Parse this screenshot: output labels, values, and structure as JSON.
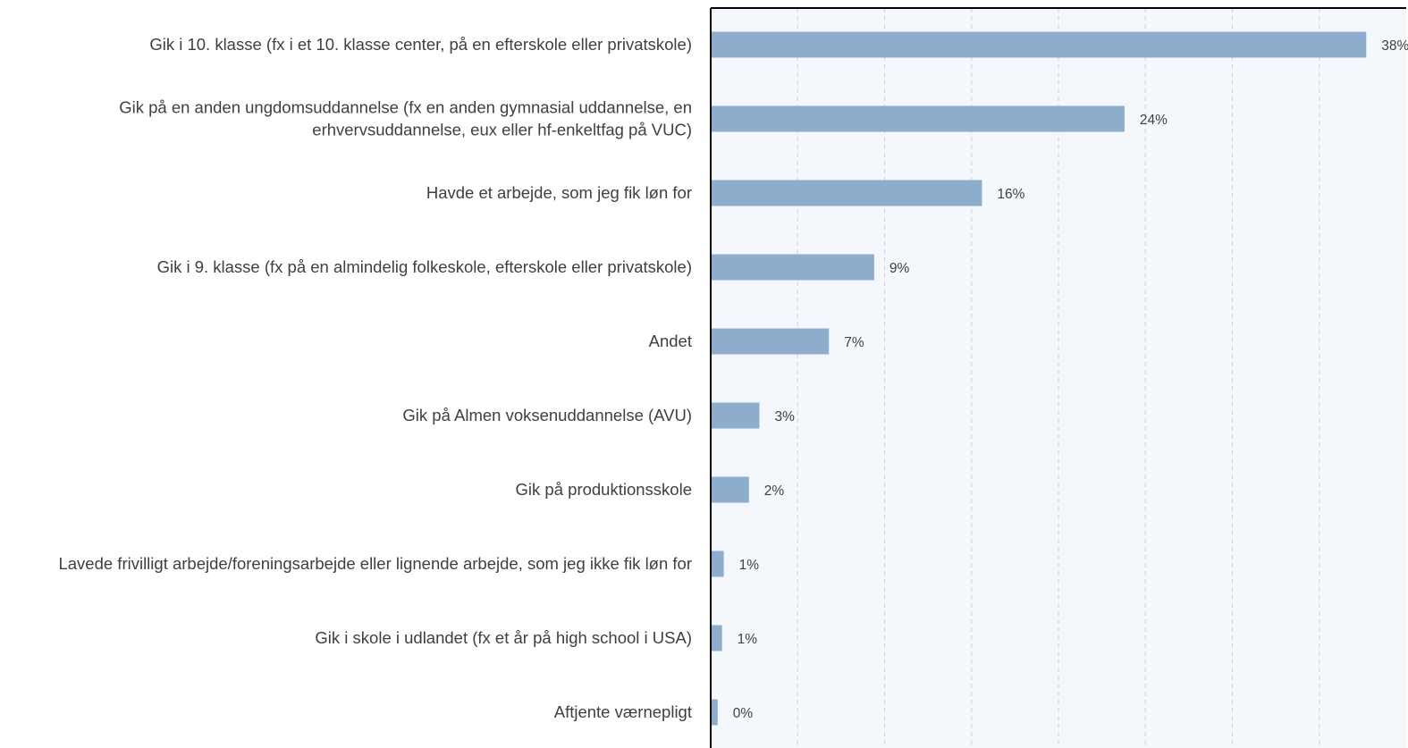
{
  "chart_data": {
    "type": "bar",
    "orientation": "horizontal",
    "categories": [
      [
        "Gik i 10. klasse (fx i et 10. klasse center, på en efterskole eller privatskole)"
      ],
      [
        "Gik på en anden ungdomsuddannelse (fx en anden gymnasial uddannelse, en",
        "erhvervsuddannelse, eux eller hf-enkeltfag på VUC)"
      ],
      [
        "Havde et arbejde, som jeg fik løn for"
      ],
      [
        "Gik i 9. klasse (fx på en almindelig folkeskole, efterskole eller privatskole)"
      ],
      [
        "Andet"
      ],
      [
        "Gik på Almen voksenuddannelse (AVU)"
      ],
      [
        "Gik på produktionsskole"
      ],
      [
        "Lavede frivilligt arbejde/foreningsarbejde eller lignende arbejde, som jeg ikke fik løn for"
      ],
      [
        "Gik i skole i udlandet (fx et år på high school i USA)"
      ],
      [
        "Aftjente værnepligt"
      ]
    ],
    "values": [
      37.7,
      23.8,
      15.6,
      9.4,
      6.8,
      2.8,
      2.2,
      0.75,
      0.65,
      0.4
    ],
    "data_labels": [
      "38%",
      "24%",
      "16%",
      "9%",
      "7%",
      "3%",
      "2%",
      "1%",
      "1%",
      "0%"
    ],
    "xlim": [
      0,
      40
    ],
    "grid_step": 5,
    "grid": true,
    "grid_style": "dashed",
    "bar_color": "#8eaccb",
    "plot_background": "#f4f7fb",
    "grid_color": "#c9d2db",
    "axis_color": "#000000",
    "text_color": "#404040"
  }
}
